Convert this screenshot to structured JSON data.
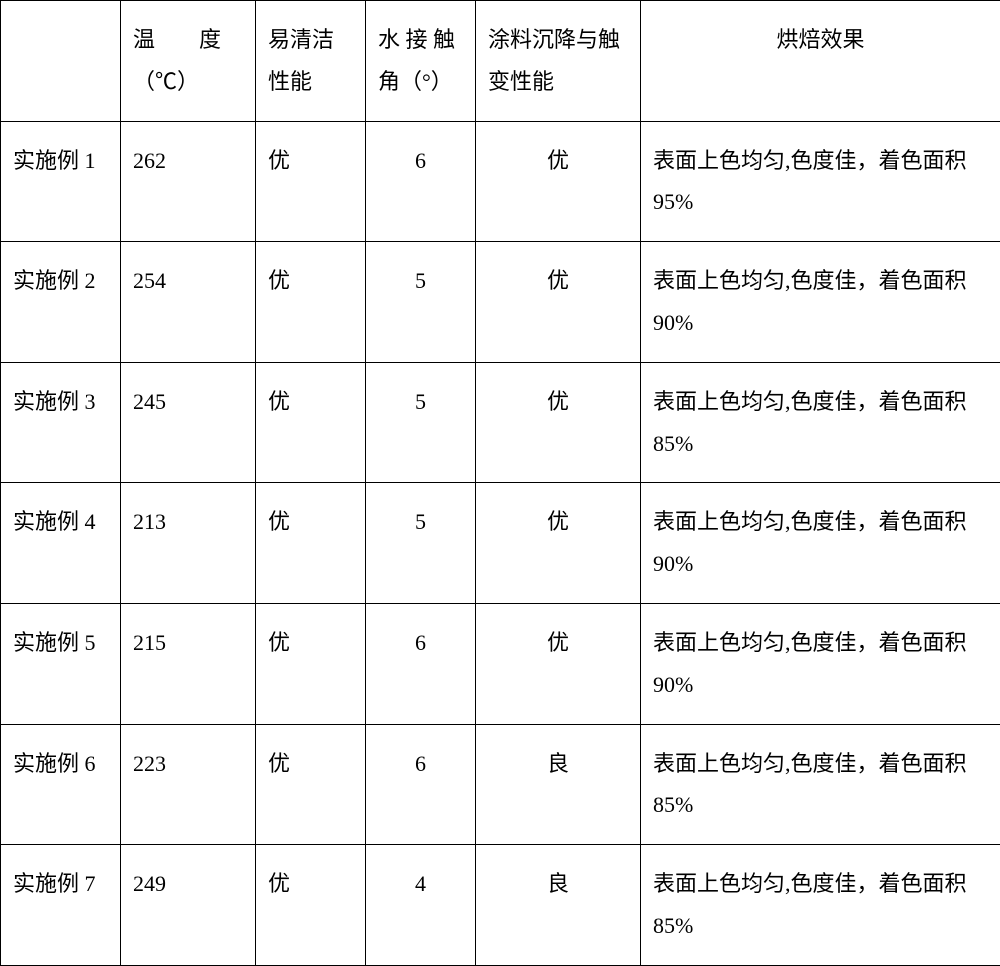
{
  "table": {
    "headers": {
      "label": "",
      "temperature": "温　　度（℃）",
      "cleanability": "易清洁性能",
      "contact_angle": "水 接 触角（°）",
      "coating": "涂料沉降与触变性能",
      "baking_effect": "烘焙效果"
    },
    "rows": [
      {
        "label": "实施例 1",
        "temperature": "262",
        "cleanability": "优",
        "contact_angle": "6",
        "coating": "优",
        "baking_effect": "表面上色均匀,色度佳，着色面积 95%"
      },
      {
        "label": "实施例 2",
        "temperature": "254",
        "cleanability": "优",
        "contact_angle": "5",
        "coating": "优",
        "baking_effect": "表面上色均匀,色度佳，着色面积 90%"
      },
      {
        "label": "实施例 3",
        "temperature": "245",
        "cleanability": "优",
        "contact_angle": "5",
        "coating": "优",
        "baking_effect": "表面上色均匀,色度佳，着色面积 85%"
      },
      {
        "label": "实施例 4",
        "temperature": "213",
        "cleanability": "优",
        "contact_angle": "5",
        "coating": "优",
        "baking_effect": "表面上色均匀,色度佳，着色面积 90%"
      },
      {
        "label": "实施例 5",
        "temperature": "215",
        "cleanability": "优",
        "contact_angle": "6",
        "coating": "优",
        "baking_effect": "表面上色均匀,色度佳，着色面积 90%"
      },
      {
        "label": "实施例 6",
        "temperature": "223",
        "cleanability": "优",
        "contact_angle": "6",
        "coating": "良",
        "baking_effect": "表面上色均匀,色度佳，着色面积 85%"
      },
      {
        "label": "实施例 7",
        "temperature": "249",
        "cleanability": "优",
        "contact_angle": "4",
        "coating": "良",
        "baking_effect": "表面上色均匀,色度佳，着色面积 85%"
      }
    ],
    "styling": {
      "border_color": "#000000",
      "background_color": "#ffffff",
      "font_family": "SimSun",
      "font_size": 22,
      "line_height": 1.9,
      "column_widths": {
        "label": 120,
        "temperature": 135,
        "cleanability": 110,
        "contact_angle": 110,
        "coating": 165,
        "baking_effect": 360
      }
    }
  }
}
